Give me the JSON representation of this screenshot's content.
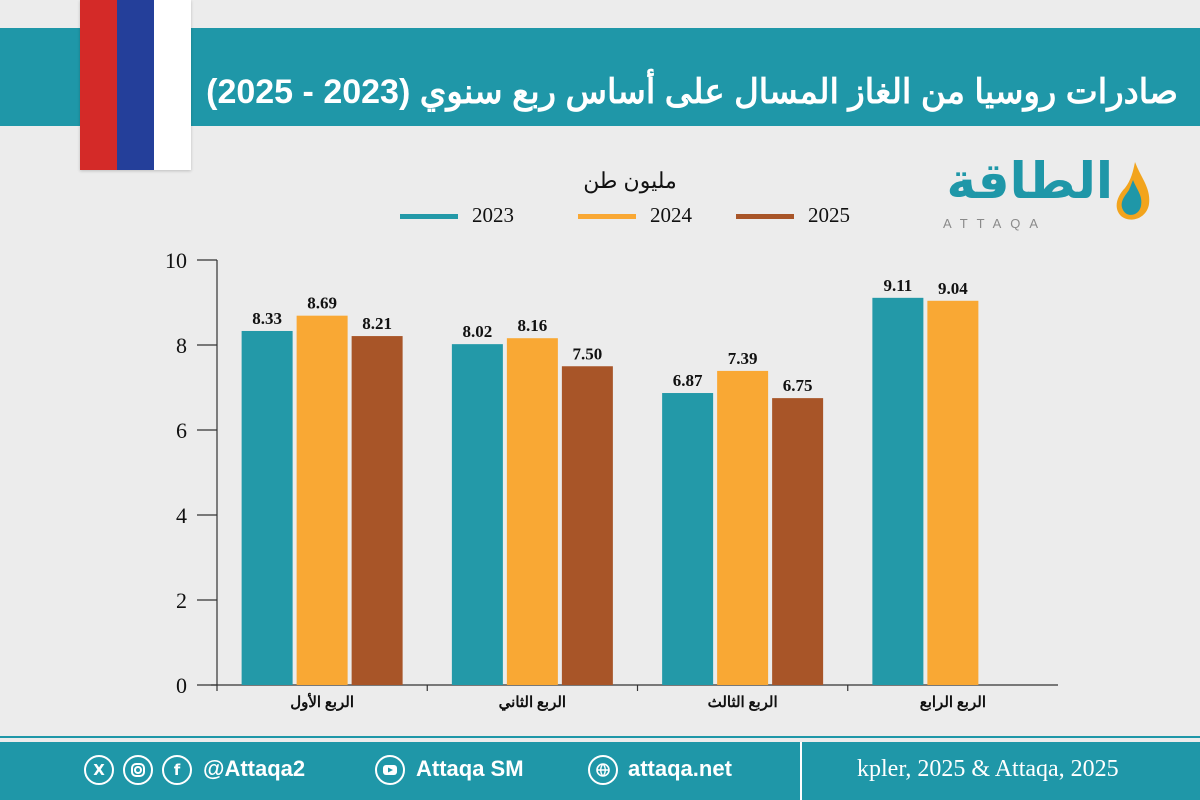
{
  "header": {
    "title": "صادرات روسيا من الغاز المسال على أساس ربع سنوي (2023 - 2025)"
  },
  "flag": {
    "stripes": [
      "#d42a28",
      "#243f9a",
      "#ffffff"
    ]
  },
  "logo": {
    "text": "الطاقة",
    "subtitle": "ATTAQA"
  },
  "colors": {
    "accent": "#1f97a8",
    "s2023": "#2399a8",
    "s2024": "#f9a834",
    "s2025": "#a85528"
  },
  "chart_data": {
    "type": "bar",
    "title": "صادرات روسيا من الغاز المسال على أساس ربع سنوي (2023 - 2025)",
    "ylabel": "مليون طن",
    "xlabel": "",
    "ylim": [
      0,
      10
    ],
    "yticks": [
      0,
      2,
      4,
      6,
      8,
      10
    ],
    "categories": [
      "الربع الأول",
      "الربع الثاني",
      "الربع الثالث",
      "الربع الرابع"
    ],
    "series": [
      {
        "name": "2023",
        "color": "#2399a8",
        "values": [
          8.33,
          8.02,
          6.87,
          9.11
        ]
      },
      {
        "name": "2024",
        "color": "#f9a834",
        "values": [
          8.69,
          8.16,
          7.39,
          9.04
        ]
      },
      {
        "name": "2025",
        "color": "#a85528",
        "values": [
          8.21,
          7.5,
          6.75,
          null
        ]
      }
    ],
    "legend": "top-center",
    "grid": false
  },
  "footer": {
    "social_handle": "@Attaqa2",
    "youtube": "Attaqa SM",
    "website": "attaqa.net",
    "source": "kpler, 2025 & Attaqa, 2025",
    "icons": [
      "x-icon",
      "instagram-icon",
      "facebook-icon",
      "youtube-icon",
      "globe-icon"
    ]
  }
}
